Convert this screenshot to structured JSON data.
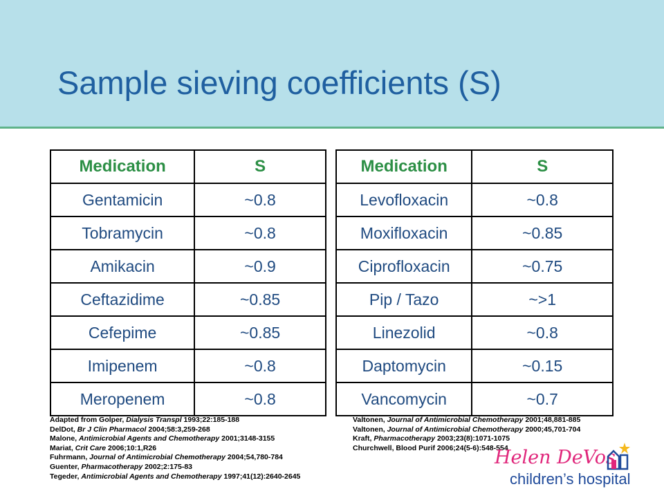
{
  "title": "Sample sieving coefficients (S)",
  "left_table": {
    "headers": [
      "Medication",
      "S"
    ],
    "rows": [
      [
        "Gentamicin",
        "~0.8"
      ],
      [
        "Tobramycin",
        "~0.8"
      ],
      [
        "Amikacin",
        "~0.9"
      ],
      [
        "Ceftazidime",
        "~0.85"
      ],
      [
        "Cefepime",
        "~0.85"
      ],
      [
        "Imipenem",
        "~0.8"
      ],
      [
        "Meropenem",
        "~0.8"
      ]
    ]
  },
  "right_table": {
    "headers": [
      "Medication",
      "S"
    ],
    "rows": [
      [
        "Levofloxacin",
        "~0.8"
      ],
      [
        "Moxifloxacin",
        "~0.85"
      ],
      [
        "Ciprofloxacin",
        "~0.75"
      ],
      [
        "Pip / Tazo",
        "~>1"
      ],
      [
        "Linezolid",
        "~0.8"
      ],
      [
        "Daptomycin",
        "~0.15"
      ],
      [
        "Vancomycin",
        "~0.7"
      ]
    ]
  },
  "refs_left": [
    {
      "pre": "Adapted from Golper, ",
      "it": "Dialysis Transpl",
      "post": " 1993;22:185-188"
    },
    {
      "pre": "DelDot, ",
      "it": "Br J Clin Pharmacol",
      "post": " 2004;58:3,259-268"
    },
    {
      "pre": "Malone, ",
      "it": "Antimicrobial Agents and Chemotherapy",
      "post": " 2001;3148-3155"
    },
    {
      "pre": "Mariat, ",
      "it": "Crit Care",
      "post": " 2006;10:1,R26"
    },
    {
      "pre": "Fuhrmann, ",
      "it": "Journal of Antimicrobial Chemotherapy",
      "post": " 2004;54,780-784"
    },
    {
      "pre": "Guenter, ",
      "it": "Pharmacotherapy",
      "post": " 2002;2:175-83"
    },
    {
      "pre": "Tegeder, ",
      "it": "Antimicrobial Agents and Chemotherapy",
      "post": " 1997;41(12):2640-2645"
    }
  ],
  "refs_right": [
    {
      "pre": "Valtonen, ",
      "it": "Journal of Antimicrobial Chemotherapy",
      "post": " 2001;48,881-885"
    },
    {
      "pre": "Valtonen, ",
      "it": "Journal of Antimicrobial Chemotherapy",
      "post": " 2000;45,701-704"
    },
    {
      "pre": "Kraft, ",
      "it": "Pharmacotherapy",
      "post": " 2003;23(8):1071-1075"
    },
    {
      "pre": "Churchwell, Blood Purif 2006;24(5-6):548-554",
      "it": "",
      "post": ""
    }
  ],
  "logo": {
    "name": "Helen DeVos",
    "sub": "children’s hospital",
    "icon": "hospital-building-icon",
    "colors": {
      "name": "#e0267b",
      "sub": "#1f4a9a",
      "star": "#f5b91e"
    }
  }
}
